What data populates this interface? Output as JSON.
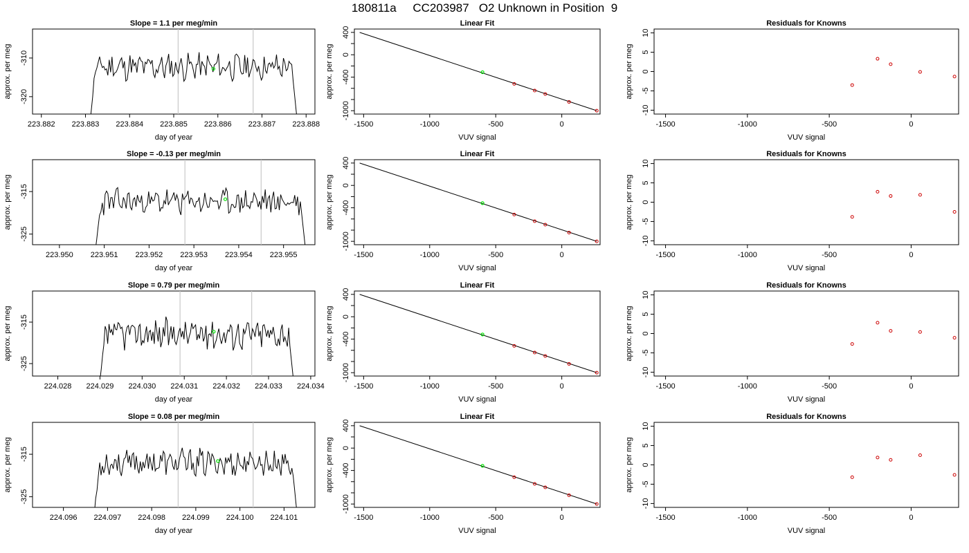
{
  "page": {
    "title": "180811a     CC203987   O2 Unknown in Position  9"
  },
  "colors": {
    "trace": "#000000",
    "marker_window": "#c8c8c8",
    "unknown_point": "#00e000",
    "known_point": "#cc0000"
  },
  "chart_data": [
    {
      "type": "line",
      "panel": "time-series-row-1",
      "title": "Slope =  1.1  per meg/min",
      "xlabel": "day of year",
      "ylabel": "approx. per meg",
      "xlim": [
        223.8818,
        223.8882
      ],
      "ylim": [
        -324.5,
        -302.5
      ],
      "xticks": [
        223.882,
        223.883,
        223.884,
        223.885,
        223.886,
        223.887,
        223.888
      ],
      "xtick_labels": [
        "223.882",
        "223.883",
        "223.884",
        "223.885",
        "223.886",
        "223.887",
        "223.888"
      ],
      "yticks": [
        -310,
        -320
      ],
      "ytick_labels": [
        "-310",
        "-320"
      ],
      "x_start": 223.8831,
      "x_end": 223.8878,
      "base_level": -312.3,
      "amplitude": 2.9,
      "seed": 11,
      "vertical_lines": [
        223.8851,
        223.8868
      ],
      "unknown_marker": {
        "x": 223.8859,
        "y": -312.8
      }
    },
    {
      "type": "scatter",
      "panel": "linear-fit-row-1",
      "title": "Linear Fit",
      "xlabel": "VUV signal",
      "ylabel": "approx. per meg",
      "xlim": [
        -1570,
        290
      ],
      "ylim": [
        -1060,
        460
      ],
      "xticks": [
        -1500,
        -1000,
        -500,
        0
      ],
      "xtick_labels": [
        "-1500",
        "-1000",
        "-500",
        "0"
      ],
      "yticks": [
        400,
        0,
        -400,
        -1000
      ],
      "ytick_labels": [
        "400",
        "0",
        "-400",
        "-1000"
      ],
      "fit_line": {
        "x": [
          -1530,
          265
        ],
        "y": [
          400,
          -1000
        ]
      },
      "knowns": {
        "x": [
          -360,
          -205,
          -125,
          55,
          265
        ],
        "y": [
          -521,
          -640,
          -702,
          -843,
          -1000
        ]
      },
      "unknown": {
        "x": -600,
        "y": -312
      }
    },
    {
      "type": "scatter",
      "panel": "residuals-row-1",
      "title": "Residuals for Knowns",
      "xlabel": "VUV signal",
      "ylabel": "approx. per meg",
      "xlim": [
        -1570,
        290
      ],
      "ylim": [
        -11,
        11
      ],
      "xticks": [
        -1500,
        -1000,
        -500,
        0
      ],
      "xtick_labels": [
        "-1500",
        "-1000",
        "-500",
        "0"
      ],
      "yticks": [
        10,
        5,
        0,
        -5,
        -10
      ],
      "ytick_labels": [
        "10",
        "5",
        "0",
        "-5",
        "-10"
      ],
      "points": {
        "x": [
          -360,
          -205,
          -125,
          55,
          265
        ],
        "y": [
          -3.5,
          3.3,
          1.9,
          -0.1,
          -1.3
        ]
      }
    },
    {
      "type": "line",
      "panel": "time-series-row-2",
      "title": "Slope =  -0.13  per meg/min",
      "xlabel": "day of year",
      "ylabel": "approx. per meg",
      "xlim": [
        223.9494,
        223.9557
      ],
      "ylim": [
        -327.5,
        -307.5
      ],
      "xticks": [
        223.95,
        223.951,
        223.952,
        223.953,
        223.954,
        223.955
      ],
      "xtick_labels": [
        "223.950",
        "223.951",
        "223.952",
        "223.953",
        "223.954",
        "223.955"
      ],
      "yticks": [
        -315,
        -325
      ],
      "ytick_labels": [
        "-315",
        "-325"
      ],
      "x_start": 223.9508,
      "x_end": 223.9555,
      "base_level": -317.4,
      "amplitude": 2.6,
      "seed": 23,
      "vertical_lines": [
        223.9528,
        223.9545
      ],
      "unknown_marker": {
        "x": 223.9537,
        "y": -316.8
      }
    },
    {
      "type": "scatter",
      "panel": "linear-fit-row-2",
      "title": "Linear Fit",
      "xlabel": "VUV signal",
      "ylabel": "approx. per meg",
      "xlim": [
        -1570,
        290
      ],
      "ylim": [
        -1060,
        460
      ],
      "xticks": [
        -1500,
        -1000,
        -500,
        0
      ],
      "xtick_labels": [
        "-1500",
        "-1000",
        "-500",
        "0"
      ],
      "yticks": [
        400,
        0,
        -400,
        -1000
      ],
      "ytick_labels": [
        "400",
        "0",
        "-400",
        "-1000"
      ],
      "fit_line": {
        "x": [
          -1530,
          265
        ],
        "y": [
          400,
          -1000
        ]
      },
      "knowns": {
        "x": [
          -360,
          -205,
          -125,
          55,
          265
        ],
        "y": [
          -521,
          -640,
          -702,
          -843,
          -1000
        ]
      },
      "unknown": {
        "x": -600,
        "y": -317
      }
    },
    {
      "type": "scatter",
      "panel": "residuals-row-2",
      "title": "Residuals for Knowns",
      "xlabel": "VUV signal",
      "ylabel": "approx. per meg",
      "xlim": [
        -1570,
        290
      ],
      "ylim": [
        -11,
        11
      ],
      "xticks": [
        -1500,
        -1000,
        -500,
        0
      ],
      "xtick_labels": [
        "-1500",
        "-1000",
        "-500",
        "0"
      ],
      "yticks": [
        10,
        5,
        0,
        -5,
        -10
      ],
      "ytick_labels": [
        "10",
        "5",
        "0",
        "-5",
        "-10"
      ],
      "points": {
        "x": [
          -360,
          -205,
          -125,
          55,
          265
        ],
        "y": [
          -3.8,
          2.7,
          1.6,
          1.9,
          -2.5
        ]
      }
    },
    {
      "type": "line",
      "panel": "time-series-row-3",
      "title": "Slope =  0.79  per meg/min",
      "xlabel": "day of year",
      "ylabel": "approx. per meg",
      "xlim": [
        224.0274,
        224.0341
      ],
      "ylim": [
        -328.0,
        -307.5
      ],
      "xticks": [
        224.028,
        224.029,
        224.03,
        224.031,
        224.032,
        224.033,
        224.034
      ],
      "xtick_labels": [
        "224.028",
        "224.029",
        "224.030",
        "224.031",
        "224.032",
        "224.033",
        "224.034"
      ],
      "yticks": [
        -315,
        -325
      ],
      "ytick_labels": [
        "-315",
        "-325"
      ],
      "x_start": 224.029,
      "x_end": 224.0336,
      "base_level": -317.8,
      "amplitude": 3.1,
      "seed": 37,
      "vertical_lines": [
        224.0309,
        224.0326
      ],
      "unknown_marker": {
        "x": 224.0317,
        "y": -317.3
      }
    },
    {
      "type": "scatter",
      "panel": "linear-fit-row-3",
      "title": "Linear Fit",
      "xlabel": "VUV signal",
      "ylabel": "approx. per meg",
      "xlim": [
        -1570,
        290
      ],
      "ylim": [
        -1060,
        460
      ],
      "xticks": [
        -1500,
        -1000,
        -500,
        0
      ],
      "xtick_labels": [
        "-1500",
        "-1000",
        "-500",
        "0"
      ],
      "yticks": [
        400,
        0,
        -400,
        -1000
      ],
      "ytick_labels": [
        "400",
        "0",
        "-400",
        "-1000"
      ],
      "fit_line": {
        "x": [
          -1530,
          265
        ],
        "y": [
          400,
          -1000
        ]
      },
      "knowns": {
        "x": [
          -360,
          -205,
          -125,
          55,
          265
        ],
        "y": [
          -521,
          -640,
          -702,
          -843,
          -1000
        ]
      },
      "unknown": {
        "x": -600,
        "y": -317
      }
    },
    {
      "type": "scatter",
      "panel": "residuals-row-3",
      "title": "Residuals for Knowns",
      "xlabel": "VUV signal",
      "ylabel": "approx. per meg",
      "xlim": [
        -1570,
        290
      ],
      "ylim": [
        -11,
        11
      ],
      "xticks": [
        -1500,
        -1000,
        -500,
        0
      ],
      "xtick_labels": [
        "-1500",
        "-1000",
        "-500",
        "0"
      ],
      "yticks": [
        10,
        5,
        0,
        -5,
        -10
      ],
      "ytick_labels": [
        "10",
        "5",
        "0",
        "-5",
        "-10"
      ],
      "points": {
        "x": [
          -360,
          -205,
          -125,
          55,
          265
        ],
        "y": [
          -2.7,
          2.8,
          0.7,
          0.4,
          -1.1
        ]
      }
    },
    {
      "type": "line",
      "panel": "time-series-row-4",
      "title": "Slope =  0.08  per meg/min",
      "xlabel": "day of year",
      "ylabel": "approx. per meg",
      "xlim": [
        224.0953,
        224.1017
      ],
      "ylim": [
        -327.5,
        -307.5
      ],
      "xticks": [
        224.096,
        224.097,
        224.098,
        224.099,
        224.1,
        224.101
      ],
      "xtick_labels": [
        "224.096",
        "224.097",
        "224.098",
        "224.099",
        "224.100",
        "224.101"
      ],
      "yticks": [
        -315,
        -325
      ],
      "ytick_labels": [
        "-315",
        "-325"
      ],
      "x_start": 224.0967,
      "x_end": 224.1013,
      "base_level": -317.0,
      "amplitude": 2.7,
      "seed": 53,
      "vertical_lines": [
        224.0986,
        224.1003
      ],
      "unknown_marker": {
        "x": 224.0995,
        "y": -316.6
      }
    },
    {
      "type": "scatter",
      "panel": "linear-fit-row-4",
      "title": "Linear Fit",
      "xlabel": "VUV signal",
      "ylabel": "approx. per meg",
      "xlim": [
        -1570,
        290
      ],
      "ylim": [
        -1060,
        460
      ],
      "xticks": [
        -1500,
        -1000,
        -500,
        0
      ],
      "xtick_labels": [
        "-1500",
        "-1000",
        "-500",
        "0"
      ],
      "yticks": [
        400,
        0,
        -400,
        -1000
      ],
      "ytick_labels": [
        "400",
        "0",
        "-400",
        "-1000"
      ],
      "fit_line": {
        "x": [
          -1530,
          265
        ],
        "y": [
          400,
          -1000
        ]
      },
      "knowns": {
        "x": [
          -360,
          -205,
          -125,
          55,
          265
        ],
        "y": [
          -521,
          -640,
          -702,
          -843,
          -1000
        ]
      },
      "unknown": {
        "x": -600,
        "y": -317
      }
    },
    {
      "type": "scatter",
      "panel": "residuals-row-4",
      "title": "Residuals for Knowns",
      "xlabel": "VUV signal",
      "ylabel": "approx. per meg",
      "xlim": [
        -1570,
        290
      ],
      "ylim": [
        -11,
        11
      ],
      "xticks": [
        -1500,
        -1000,
        -500,
        0
      ],
      "xtick_labels": [
        "-1500",
        "-1000",
        "-500",
        "0"
      ],
      "yticks": [
        10,
        5,
        0,
        -5,
        -10
      ],
      "ytick_labels": [
        "10",
        "5",
        "0",
        "-5",
        "-10"
      ],
      "points": {
        "x": [
          -360,
          -205,
          -125,
          55,
          265
        ],
        "y": [
          -3.2,
          1.9,
          1.3,
          2.5,
          -2.6
        ]
      }
    }
  ]
}
